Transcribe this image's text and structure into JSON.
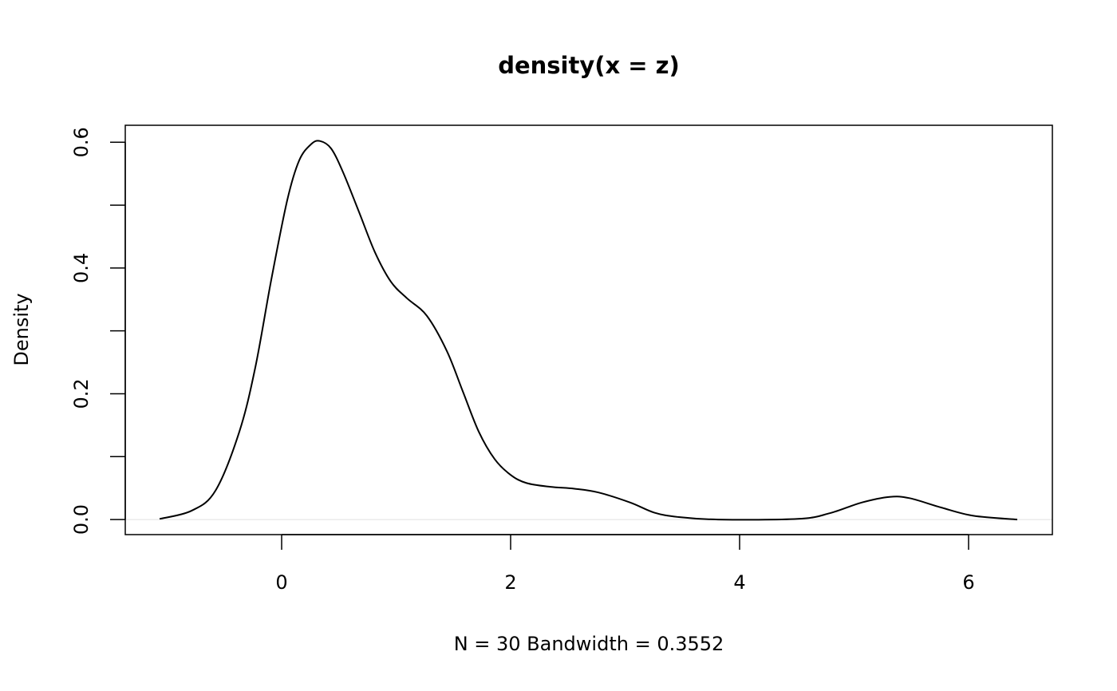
{
  "chart_data": {
    "type": "line",
    "title": "density(x = z)",
    "xlabel": "N = 30   Bandwidth = 0.3552",
    "ylabel": "Density",
    "xlim": [
      -1.366,
      6.732
    ],
    "ylim": [
      -0.024,
      0.627
    ],
    "x_ticks": [
      0,
      2,
      4,
      6
    ],
    "x_tick_labels": [
      "0",
      "2",
      "4",
      "6"
    ],
    "y_ticks": [
      0,
      0.1,
      0.2,
      0.3,
      0.4,
      0.5,
      0.6
    ],
    "y_tick_labels": [
      "0.0",
      "",
      "0.2",
      "",
      "0.4",
      "",
      "0.6"
    ],
    "grid": false,
    "zero_line_color": "#e0e0e0",
    "line_color": "#000000",
    "series": [
      {
        "x": [
          -1.066,
          -0.787,
          -0.578,
          -0.369,
          -0.23,
          -0.091,
          0.049,
          0.153,
          0.258,
          0.334,
          0.432,
          0.537,
          0.676,
          0.815,
          0.955,
          1.094,
          1.268,
          1.443,
          1.582,
          1.721,
          1.861,
          2.0,
          2.139,
          2.348,
          2.557,
          2.767,
          3.045,
          3.254,
          3.463,
          3.812,
          4.509,
          4.787,
          5.066,
          5.31,
          5.484,
          5.763,
          6.042,
          6.425
        ],
        "y": [
          0.001,
          0.014,
          0.046,
          0.14,
          0.242,
          0.381,
          0.508,
          0.571,
          0.597,
          0.602,
          0.59,
          0.552,
          0.489,
          0.425,
          0.378,
          0.352,
          0.324,
          0.268,
          0.204,
          0.14,
          0.096,
          0.071,
          0.058,
          0.052,
          0.049,
          0.043,
          0.027,
          0.011,
          0.004,
          0.0,
          0.001,
          0.01,
          0.027,
          0.036,
          0.034,
          0.019,
          0.006,
          0.0
        ]
      }
    ]
  }
}
